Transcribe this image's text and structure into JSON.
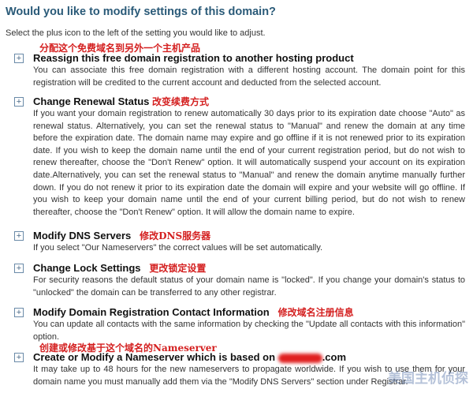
{
  "page": {
    "heading": "Would you like to modify settings of this domain?",
    "intro": "Select the plus icon to the left of the setting you would like to adjust."
  },
  "items": [
    {
      "annotation": "分配这个免费域名到另外一个主机产品",
      "title": "Reassign this free domain registration to another hosting product",
      "desc": "You can associate this free domain registration with a different hosting account. The domain point for this registration will be credited to the current account and deducted from the selected account."
    },
    {
      "annotation": "改变续费方式",
      "title": "Change Renewal Status",
      "desc": "If you want your domain registration to renew automatically 30 days prior to its expiration date choose \"Auto\" as renewal status. Alternatively, you can set the renewal status to \"Manual\" and renew the domain at any time before the expiration date. The domain name may expire and go offline if it is not renewed prior to its expiration date. If you wish to keep the domain name until the end of your current registration period, but do not wish to renew thereafter, choose the \"Don't Renew\" option. It will automatically suspend your account on its expiration date.Alternatively, you can set the renewal status to \"Manual\" and renew the domain anytime manually further down. If you do not renew it prior to its expiration date the domain will expire and your website will go offline. If you wish to keep your domain name until the end of your current billing period, but do not wish to renew thereafter, choose the \"Don't Renew\" option. It will allow the domain name to expire."
    },
    {
      "annotation": "修改DNS服务器",
      "title": "Modify DNS Servers",
      "desc": "If you select \"Our Nameservers\" the correct values will be set automatically."
    },
    {
      "annotation": "更改锁定设置",
      "title": "Change Lock Settings",
      "desc": "For security reasons the default status of your domain name is \"locked\". If you change your domain's status to \"unlocked\" the domain can be transferred to any other registrar."
    },
    {
      "annotation": "修改域名注册信息",
      "title": "Modify Domain Registration Contact Information",
      "desc": "You can update all contacts with the same information by checking the \"Update all contacts with this information\" option."
    },
    {
      "annotation": "创建或修改基于这个域名的Nameserver",
      "title": "Create or Modify a Nameserver which is based on",
      "title_suffix": ".com",
      "desc": "It may take up to 48 hours for the new nameservers to propagate worldwide. If you wish to use them for your domain name you must manually add them via the \"Modify DNS Servers\" section under Registrar."
    }
  ],
  "watermark": "美国主机侦探"
}
